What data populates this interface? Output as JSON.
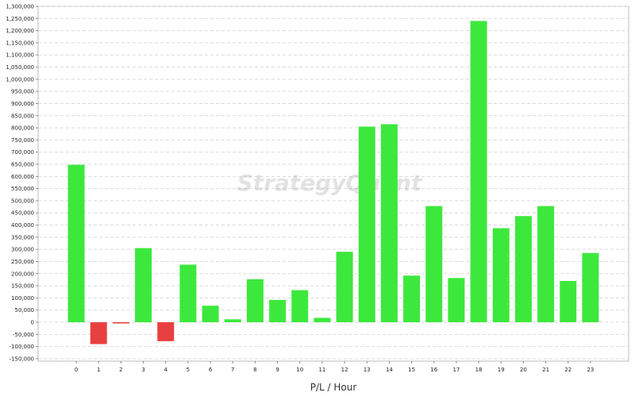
{
  "chart_data": {
    "type": "bar",
    "title": "",
    "xlabel": "P/L / Hour",
    "ylabel": "",
    "ylim": [
      -160000,
      1300000
    ],
    "ytick_step": 50000,
    "yticks": [
      "1,300,000",
      "1,250,000",
      "1,200,000",
      "1,150,000",
      "1,100,000",
      "1,050,000",
      "1,000,000",
      "950,000",
      "900,000",
      "850,000",
      "800,000",
      "750,000",
      "700,000",
      "650,000",
      "600,000",
      "550,000",
      "500,000",
      "450,000",
      "400,000",
      "350,000",
      "300,000",
      "250,000",
      "200,000",
      "150,000",
      "100,000",
      "50,000",
      "0",
      "-50,000",
      "-100,000",
      "-150,000"
    ],
    "categories": [
      "0",
      "1",
      "2",
      "3",
      "4",
      "5",
      "6",
      "7",
      "8",
      "9",
      "10",
      "11",
      "12",
      "13",
      "14",
      "15",
      "16",
      "17",
      "18",
      "19",
      "20",
      "21",
      "22",
      "23"
    ],
    "values": [
      648000,
      -90000,
      -5000,
      305000,
      -78000,
      237000,
      68000,
      12000,
      177000,
      92000,
      132000,
      18000,
      290000,
      805000,
      815000,
      192000,
      478000,
      182000,
      1240000,
      387000,
      437000,
      478000,
      170000,
      285000
    ],
    "grid": true,
    "legend": "none",
    "colors": {
      "positive": "#3de83d",
      "negative": "#e84040",
      "grid": "#d9d9d9",
      "frame": "#bdbdbd"
    },
    "watermark": "StrategyQuant"
  }
}
